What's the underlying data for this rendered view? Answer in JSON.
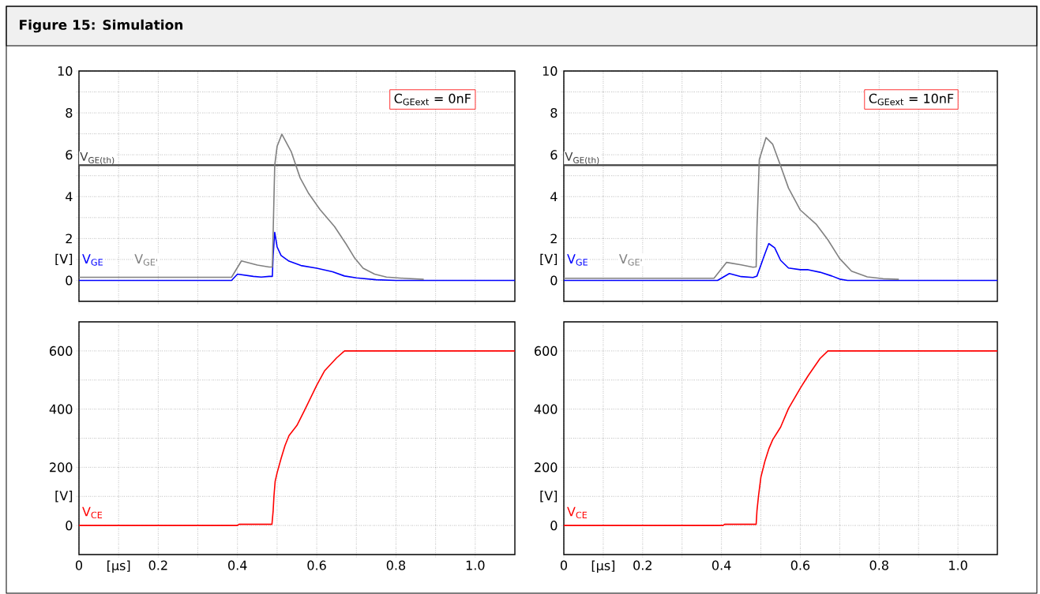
{
  "chart_data": [
    {
      "type": "line",
      "title": "Figure 15: Simulation",
      "annotations": [
        "C$_{GEext}$ =  0nF"
      ],
      "xlim": [
        0,
        1.1
      ],
      "ylim": [
        -1,
        10
      ],
      "xticks": [
        0,
        0.1,
        0.2,
        0.3,
        0.4,
        0.5,
        0.6,
        0.7,
        0.8,
        0.9,
        1.0
      ],
      "yticks": [
        0,
        {
          "value": 1,
          "label": "[V]"
        },
        2,
        {
          "value": 3,
          "label": null
        },
        4,
        {
          "value": 5,
          "label": null
        },
        6,
        {
          "value": 7,
          "label": null
        },
        8,
        {
          "value": 9,
          "label": null
        },
        10
      ],
      "grid": true,
      "tick_labels": "y",
      "ref_lines": [
        {
          "axis": "y",
          "value": 5.5,
          "label": "V$_{GE(th)}$",
          "color": "#404040"
        }
      ],
      "series": [
        {
          "name": "V$_{GE}$",
          "color": "#0000ff",
          "x": [
            0,
            0.385,
            0.4,
            0.44,
            0.46,
            0.48,
            0.488,
            0.49,
            0.494,
            0.5,
            0.51,
            0.53,
            0.56,
            0.6,
            0.64,
            0.67,
            0.7,
            0.75,
            0.8,
            1.1
          ],
          "values": [
            0,
            0,
            0.3,
            0.19,
            0.16,
            0.19,
            0.19,
            1.2,
            2.29,
            1.6,
            1.19,
            0.92,
            0.71,
            0.58,
            0.41,
            0.21,
            0.12,
            0.03,
            0,
            0
          ]
        },
        {
          "name": "V$_{GE'}$",
          "color": "#808080",
          "x": [
            0,
            0.385,
            0.41,
            0.45,
            0.48,
            0.488,
            0.494,
            0.5,
            0.512,
            0.536,
            0.558,
            0.58,
            0.608,
            0.645,
            0.674,
            0.696,
            0.717,
            0.746,
            0.776,
            0.82,
            0.87
          ],
          "values": [
            0.15,
            0.15,
            0.93,
            0.73,
            0.64,
            0.64,
            5.5,
            6.4,
            6.98,
            6.13,
            4.9,
            4.14,
            3.39,
            2.57,
            1.74,
            1.06,
            0.58,
            0.3,
            0.16,
            0.1,
            0.05
          ]
        }
      ]
    },
    {
      "type": "line",
      "annotations": [
        "C$_{GEext}$ = 10nF"
      ],
      "xlim": [
        0,
        1.1
      ],
      "ylim": [
        -1,
        10
      ],
      "xticks": [
        0,
        0.1,
        0.2,
        0.3,
        0.4,
        0.5,
        0.6,
        0.7,
        0.8,
        0.9,
        1.0
      ],
      "yticks": [
        0,
        {
          "value": 1,
          "label": "[V]"
        },
        2,
        {
          "value": 3,
          "label": null
        },
        4,
        {
          "value": 5,
          "label": null
        },
        6,
        {
          "value": 7,
          "label": null
        },
        8,
        {
          "value": 9,
          "label": null
        },
        10
      ],
      "grid": true,
      "tick_labels": "y",
      "ref_lines": [
        {
          "axis": "y",
          "value": 5.5,
          "label": "V$_{GE(th)}$",
          "color": "#404040"
        }
      ],
      "series": [
        {
          "name": "V$_{GE}$",
          "color": "#0000ff",
          "x": [
            0,
            0.39,
            0.42,
            0.45,
            0.48,
            0.49,
            0.51,
            0.52,
            0.535,
            0.55,
            0.57,
            0.6,
            0.62,
            0.65,
            0.68,
            0.7,
            0.72,
            1.1
          ],
          "values": [
            0,
            0,
            0.33,
            0.18,
            0.14,
            0.21,
            1.26,
            1.76,
            1.56,
            0.96,
            0.59,
            0.51,
            0.51,
            0.39,
            0.21,
            0.06,
            0,
            0
          ]
        },
        {
          "name": "V$_{GE'}$",
          "color": "#808080",
          "x": [
            0,
            0.381,
            0.413,
            0.45,
            0.48,
            0.488,
            0.49,
            0.496,
            0.513,
            0.53,
            0.55,
            0.57,
            0.6,
            0.64,
            0.67,
            0.7,
            0.73,
            0.77,
            0.81,
            0.85
          ],
          "values": [
            0.1,
            0.1,
            0.86,
            0.74,
            0.63,
            0.65,
            2.5,
            5.77,
            6.82,
            6.5,
            5.47,
            4.41,
            3.36,
            2.69,
            1.94,
            1.04,
            0.44,
            0.17,
            0.08,
            0.05
          ]
        }
      ]
    },
    {
      "type": "line",
      "xlim": [
        0,
        1.1
      ],
      "ylim": [
        -100,
        700
      ],
      "xticks": [
        0,
        {
          "value": 0.1,
          "label": "[μs]"
        },
        0.2,
        {
          "value": 0.3,
          "label": null
        },
        0.4,
        {
          "value": 0.5,
          "label": null
        },
        0.6,
        {
          "value": 0.7,
          "label": null
        },
        0.8,
        {
          "value": 0.9,
          "label": null
        },
        {
          "value": 1.0,
          "label": "1.0"
        }
      ],
      "yticks": [
        0,
        {
          "value": 100,
          "label": "[V]"
        },
        200,
        {
          "value": 300,
          "label": null
        },
        400,
        {
          "value": 500,
          "label": null
        },
        600
      ],
      "grid": true,
      "series": [
        {
          "name": "V$_{CE}$",
          "color": "#ff0000",
          "x": [
            0,
            0.4,
            0.404,
            0.487,
            0.49,
            0.492,
            0.495,
            0.5,
            0.51,
            0.52,
            0.53,
            0.55,
            0.57,
            0.6,
            0.62,
            0.65,
            0.67,
            1.1
          ],
          "values": [
            0,
            0,
            4,
            4,
            50,
            100,
            151,
            181,
            230,
            275,
            309,
            344,
            398,
            482,
            532,
            576,
            600,
            600
          ]
        }
      ]
    },
    {
      "type": "line",
      "xlim": [
        0,
        1.1
      ],
      "ylim": [
        -100,
        700
      ],
      "xticks": [
        0,
        {
          "value": 0.1,
          "label": "[μs]"
        },
        0.2,
        {
          "value": 0.3,
          "label": null
        },
        0.4,
        {
          "value": 0.5,
          "label": null
        },
        0.6,
        {
          "value": 0.7,
          "label": null
        },
        0.8,
        {
          "value": 0.9,
          "label": null
        },
        {
          "value": 1.0,
          "label": "1.0"
        }
      ],
      "yticks": [
        0,
        {
          "value": 100,
          "label": "[V]"
        },
        200,
        {
          "value": 300,
          "label": null
        },
        400,
        {
          "value": 500,
          "label": null
        },
        600
      ],
      "grid": true,
      "series": [
        {
          "name": "V$_{CE}$",
          "color": "#ff0000",
          "x": [
            0,
            0.404,
            0.408,
            0.488,
            0.49,
            0.494,
            0.5,
            0.51,
            0.52,
            0.53,
            0.55,
            0.57,
            0.6,
            0.62,
            0.65,
            0.67,
            1.1
          ],
          "values": [
            0,
            0,
            4,
            4,
            50,
            102,
            166,
            220,
            263,
            295,
            338,
            402,
            472,
            515,
            574,
            600,
            600
          ]
        }
      ]
    }
  ]
}
